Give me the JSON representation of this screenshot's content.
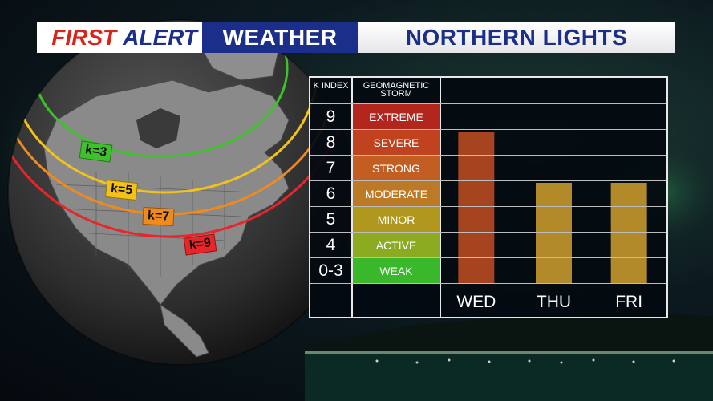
{
  "banner": {
    "first": "FIRST",
    "alert": "ALERT",
    "weather": "WEATHER",
    "topic": "NORTHERN LIGHTS"
  },
  "map_labels": [
    {
      "text": "k=3",
      "color": "#3ec22b"
    },
    {
      "text": "k=5",
      "color": "#f2c21a"
    },
    {
      "text": "k=7",
      "color": "#f08a1c"
    },
    {
      "text": "k=9",
      "color": "#e8262a"
    }
  ],
  "table": {
    "k_header": "K INDEX",
    "storm_header": "GEOMAGNETIC STORM",
    "rows": [
      {
        "k": "9",
        "storm": "EXTREME",
        "color": "#b3261e"
      },
      {
        "k": "8",
        "storm": "SEVERE",
        "color": "#c0421f"
      },
      {
        "k": "7",
        "storm": "STRONG",
        "color": "#c25e22"
      },
      {
        "k": "6",
        "storm": "MODERATE",
        "color": "#bd7a26"
      },
      {
        "k": "5",
        "storm": "MINOR",
        "color": "#b0981f"
      },
      {
        "k": "4",
        "storm": "ACTIVE",
        "color": "#8cab21"
      },
      {
        "k": "0-3",
        "storm": "WEAK",
        "color": "#38b82a"
      }
    ]
  },
  "chart_data": {
    "type": "bar",
    "categories": [
      "WED",
      "THU",
      "FRI"
    ],
    "values": [
      8,
      6,
      6
    ],
    "colors": [
      "#a64420",
      "#b38a2a",
      "#b38a2a"
    ],
    "xlabel": "",
    "ylabel": "",
    "y_ticks": [
      "9",
      "8",
      "7",
      "6",
      "5",
      "4",
      "0-3"
    ],
    "ylim": [
      3,
      9.5
    ],
    "grid": true
  }
}
